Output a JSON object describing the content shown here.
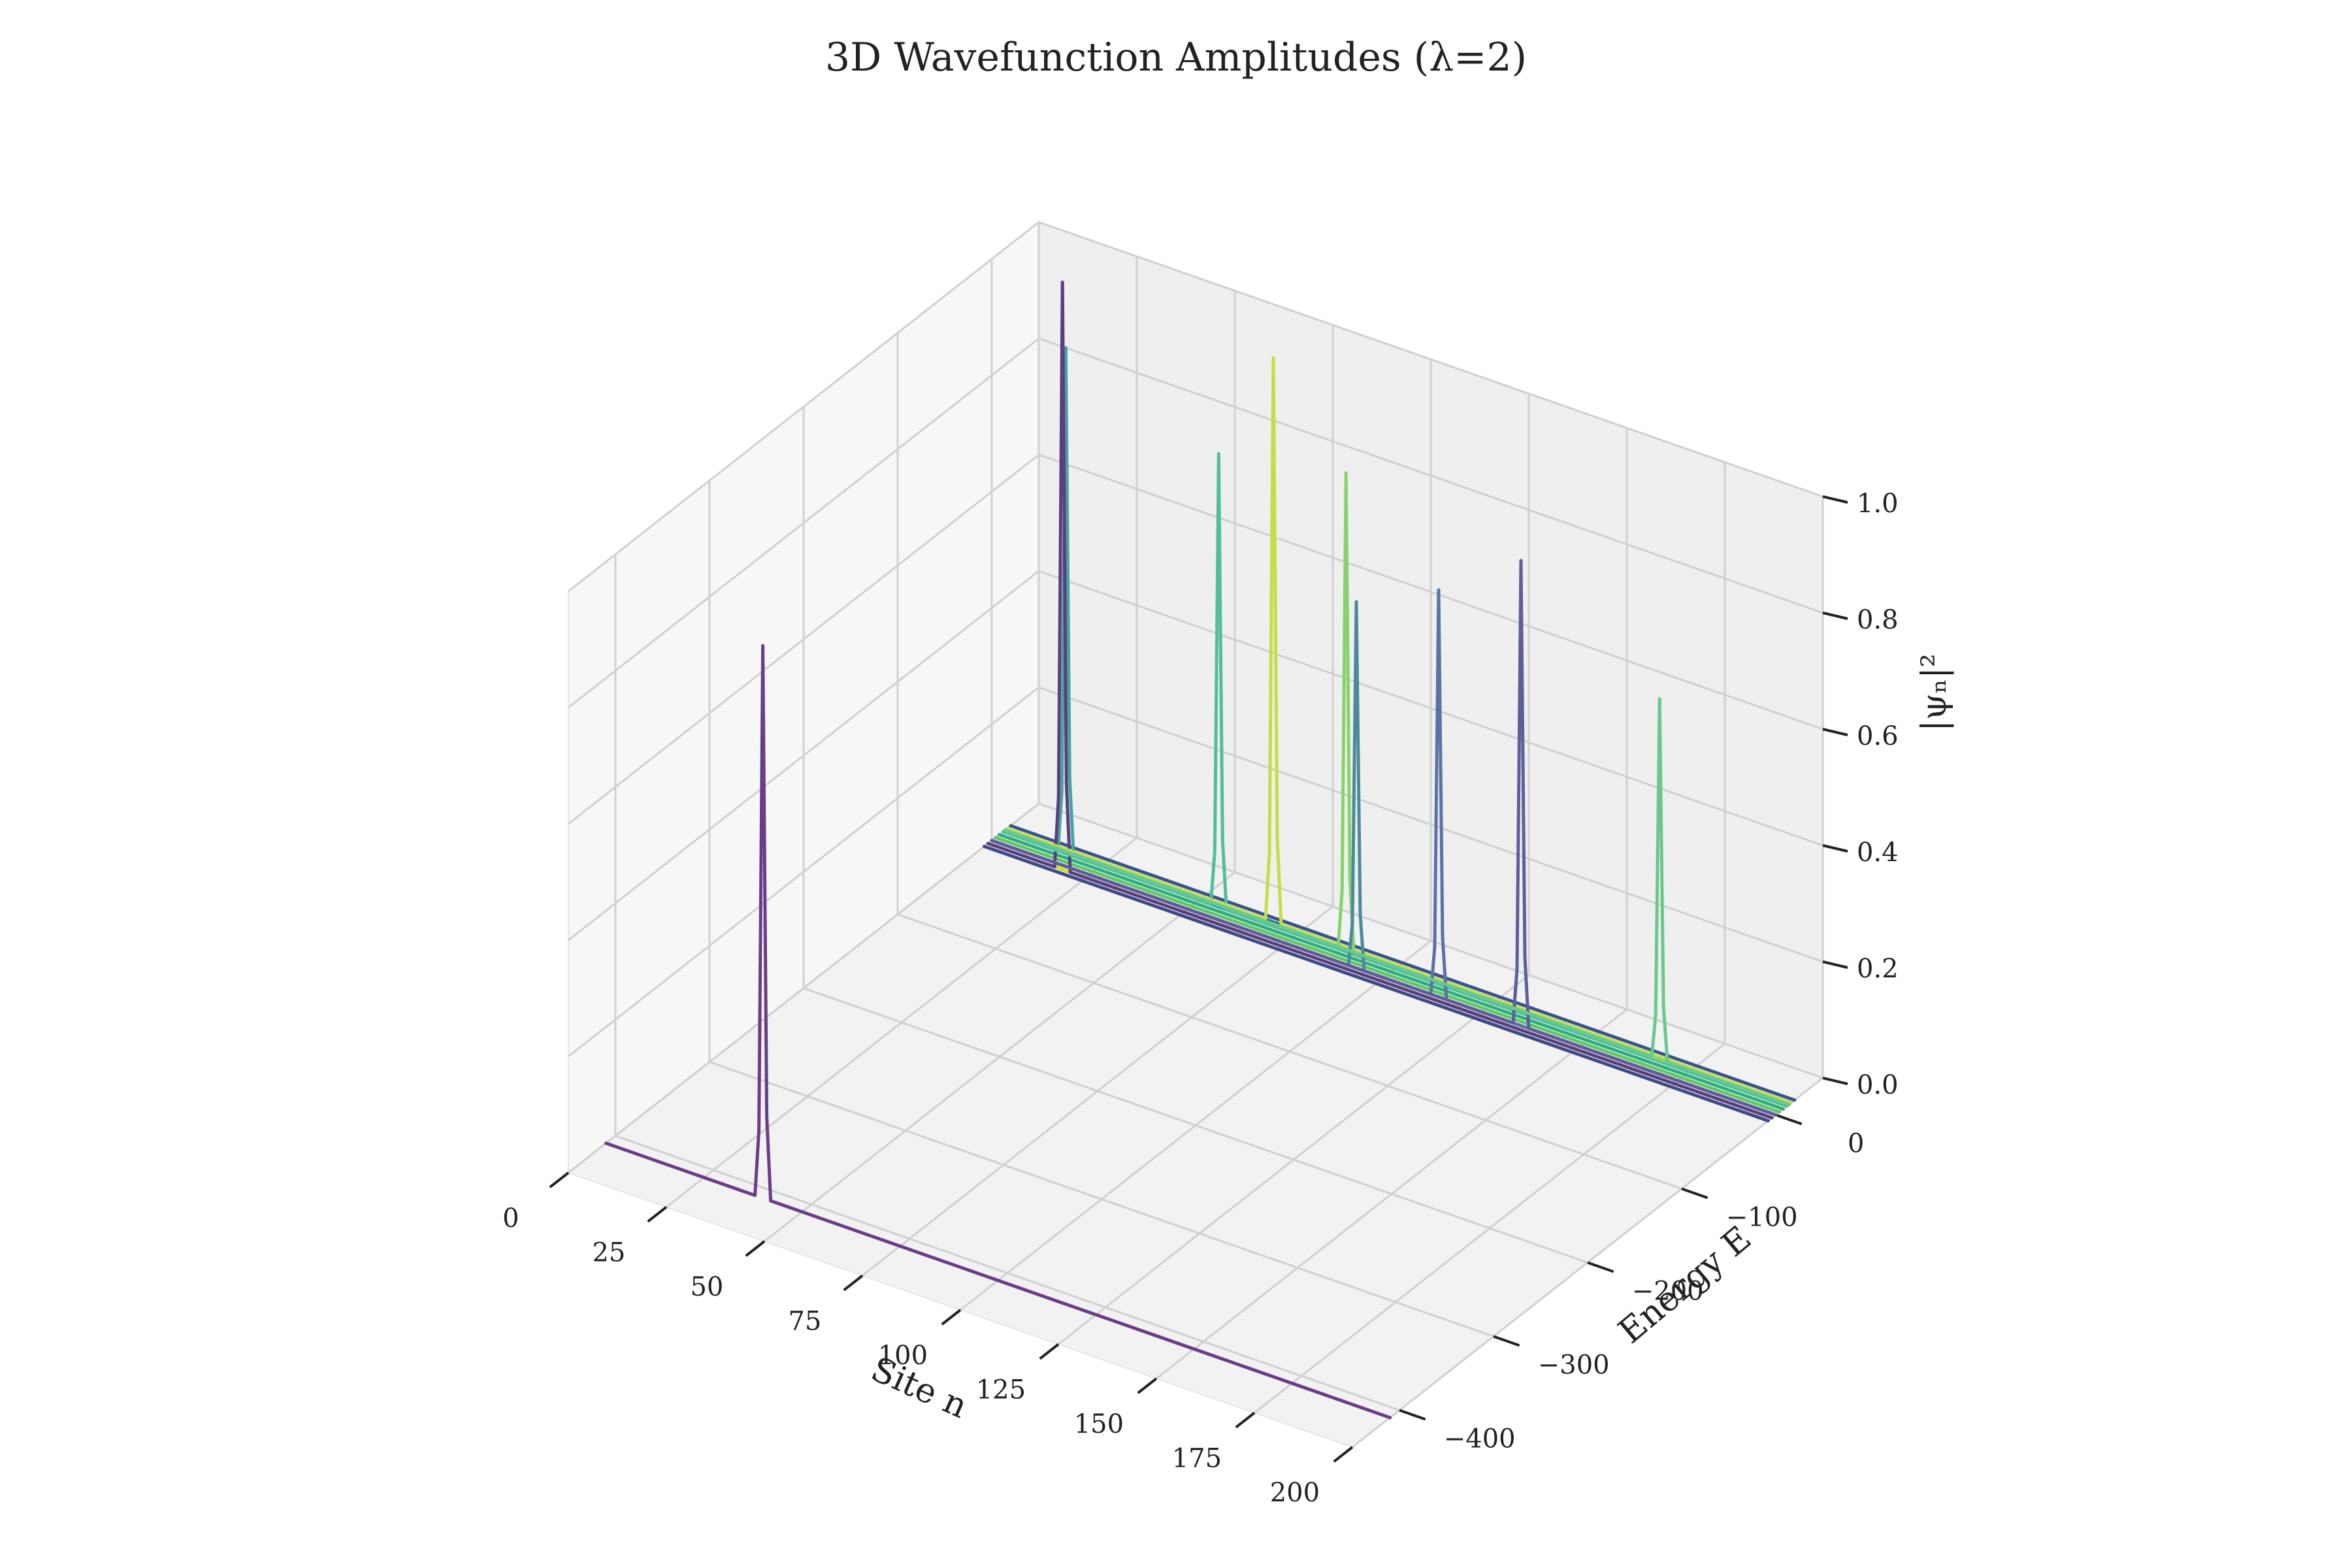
{
  "chart_data": {
    "type": "line3d",
    "title": "3D Wavefunction Amplitudes (λ=2)",
    "xlabel": "Site n",
    "ylabel": "Energy E",
    "zlabel": "|ψₙ|²",
    "xlim": [
      0,
      200
    ],
    "ylim": [
      -450,
      50
    ],
    "zlim": [
      0,
      1
    ],
    "xticks": [
      0,
      25,
      50,
      75,
      100,
      125,
      150,
      175,
      200
    ],
    "yticks": [
      0,
      -100,
      -200,
      -300,
      -400
    ],
    "zticks": [
      0,
      0.2,
      0.4,
      0.6,
      0.8,
      1.0
    ],
    "xtick_labels": [
      "0",
      "25",
      "50",
      "75",
      "100",
      "125",
      "150",
      "175",
      "200"
    ],
    "ytick_labels": [
      "0",
      "−100",
      "−200",
      "−300",
      "−400"
    ],
    "ztick_labels": [
      "0.0",
      "0.2",
      "0.4",
      "0.6",
      "0.8",
      "1.0"
    ],
    "grid": true,
    "colormap": "viridis",
    "series": [
      {
        "energy": -410,
        "peak_site": 40,
        "peak_value": 0.95,
        "color": "#6a3d8a"
      },
      {
        "energy": 12,
        "peak_site": 16,
        "peak_value": 0.87,
        "color": "#45a59a"
      },
      {
        "energy": -4,
        "peak_site": 19,
        "peak_value": 1.01,
        "color": "#5c3d82"
      },
      {
        "energy": 12,
        "peak_site": 55,
        "peak_value": 0.78,
        "color": "#52be98"
      },
      {
        "energy": 16,
        "peak_site": 68,
        "peak_value": 0.97,
        "color": "#c2df43"
      },
      {
        "energy": 14,
        "peak_site": 87,
        "peak_value": 0.82,
        "color": "#86d36c"
      },
      {
        "energy": 0,
        "peak_site": 93,
        "peak_value": 0.63,
        "color": "#4b8a9c"
      },
      {
        "energy": 0,
        "peak_site": 114,
        "peak_value": 0.7,
        "color": "#5b73a4"
      },
      {
        "energy": 0,
        "peak_site": 135,
        "peak_value": 0.8,
        "color": "#5c5f98"
      },
      {
        "energy": 14,
        "peak_site": 167,
        "peak_value": 0.62,
        "color": "#69c88c"
      }
    ],
    "baseline_colors": [
      "#3b528b",
      "#2c728e",
      "#21918c",
      "#28ae80",
      "#5ec962",
      "#addc30",
      "#cde11d",
      "#3e4989"
    ]
  }
}
